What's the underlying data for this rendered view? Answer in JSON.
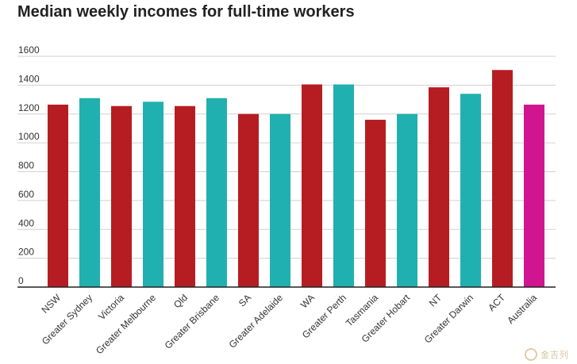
{
  "chart_data": {
    "type": "bar",
    "title": "Median weekly incomes for full-time workers",
    "xlabel": "",
    "ylabel": "",
    "ylim": [
      0,
      1600
    ],
    "yticks": [
      0,
      200,
      400,
      600,
      800,
      1000,
      1200,
      1400,
      1600
    ],
    "grid": true,
    "categories": [
      "NSW",
      "Greater Sydney",
      "Victoria",
      "Greater Melbourne",
      "Qld",
      "Greater Brisbane",
      "SA",
      "Greater Adelaide",
      "WA",
      "Greater Perth",
      "Tasmania",
      "Greater Hobart",
      "NT",
      "Greater Darwin",
      "ACT",
      "Australia"
    ],
    "values": [
      1265,
      1310,
      1255,
      1285,
      1255,
      1310,
      1200,
      1200,
      1405,
      1405,
      1160,
      1200,
      1385,
      1340,
      1505,
      1265
    ],
    "colors": [
      "#b61d22",
      "#21b0b0",
      "#b61d22",
      "#21b0b0",
      "#b61d22",
      "#21b0b0",
      "#b61d22",
      "#21b0b0",
      "#b61d22",
      "#21b0b0",
      "#b61d22",
      "#21b0b0",
      "#b61d22",
      "#21b0b0",
      "#b61d22",
      "#d1148f"
    ],
    "palette": {
      "state": "#b61d22",
      "capital": "#21b0b0",
      "national": "#d1148f",
      "grid": "#d0d0d0",
      "axis": "#222222"
    }
  },
  "watermark": {
    "text": "金吉列"
  }
}
